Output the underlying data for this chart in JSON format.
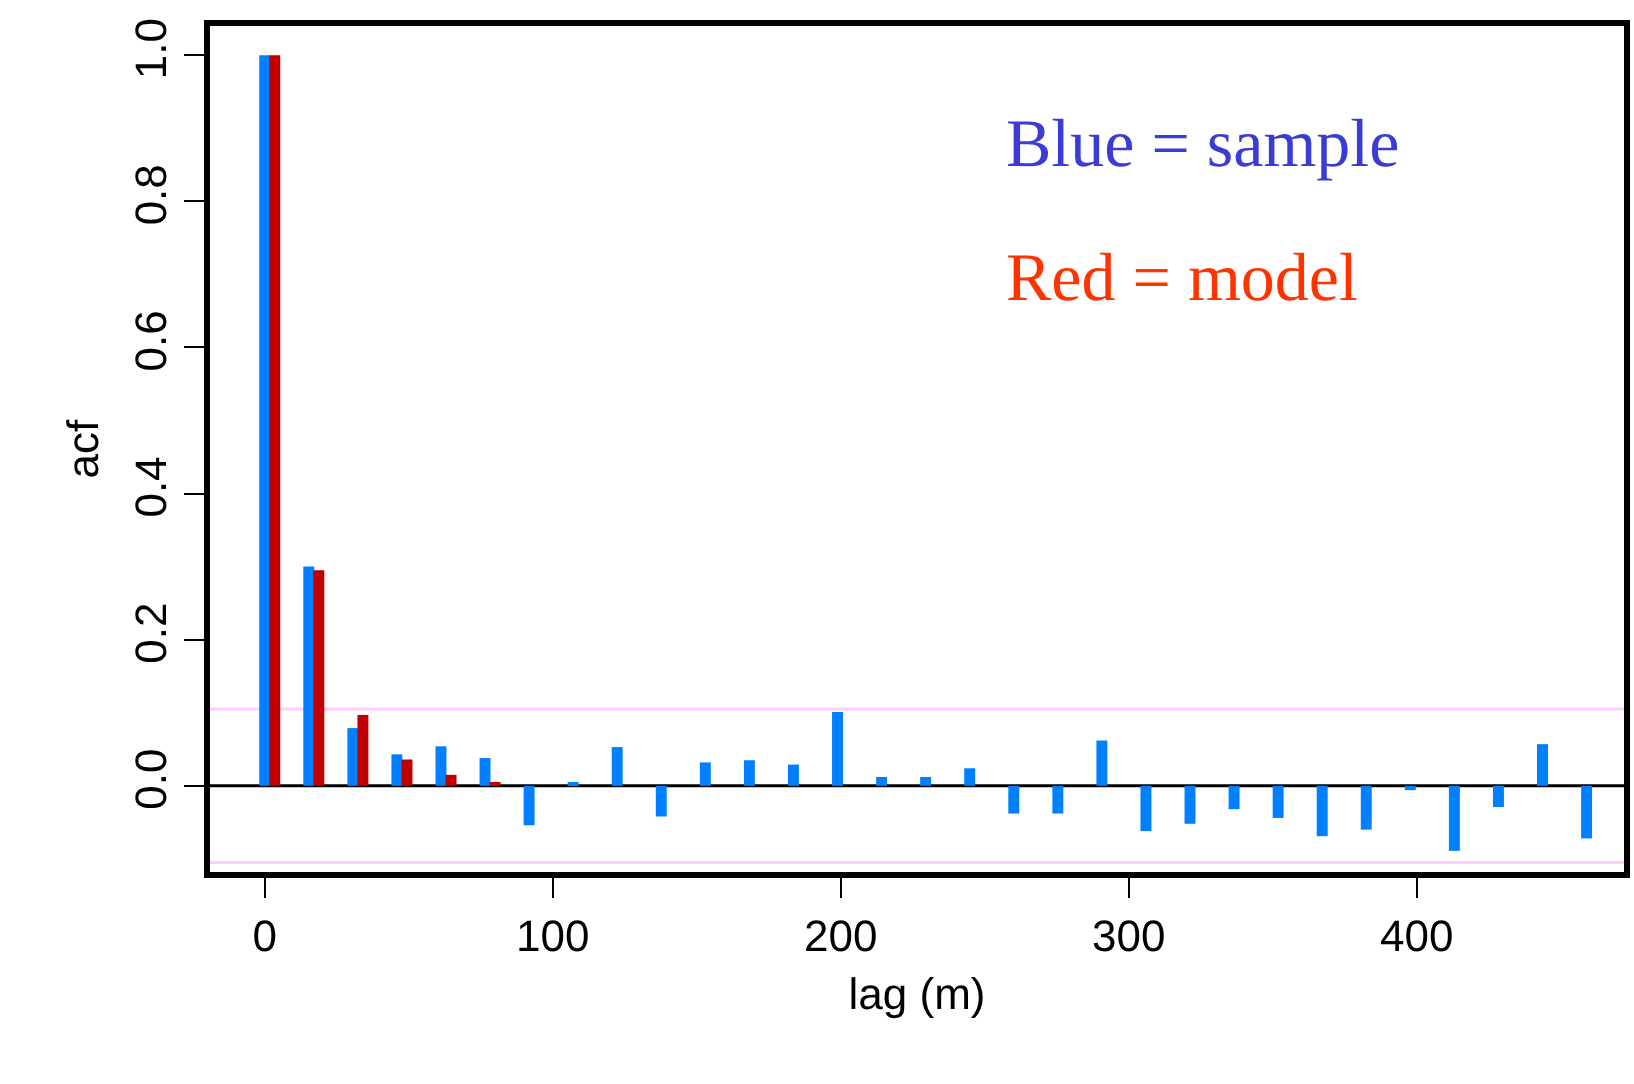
{
  "chart_data": {
    "type": "bar",
    "xlabel": "lag (m)",
    "ylabel": "acf",
    "series": [
      {
        "color": "#0080ff",
        "x": [
          0,
          15.3,
          30.6,
          45.9,
          61.2,
          76.5,
          91.8,
          107.1,
          122.4,
          137.7,
          153,
          168.3,
          183.6,
          198.9,
          214.2,
          229.5,
          244.8,
          260.1,
          275.4,
          290.7,
          306,
          321.3,
          336.6,
          351.9,
          367.2,
          382.5,
          397.8,
          413.1,
          428.4,
          443.7,
          459
        ],
        "values": [
          1.0,
          0.3,
          0.079,
          0.043,
          0.054,
          0.038,
          -0.054,
          0.005,
          0.053,
          -0.042,
          0.032,
          0.035,
          0.029,
          0.101,
          0.012,
          0.012,
          0.024,
          -0.038,
          -0.038,
          0.062,
          -0.062,
          -0.052,
          -0.032,
          -0.044,
          -0.069,
          -0.06,
          -0.006,
          -0.089,
          -0.029,
          0.057,
          -0.072
        ]
      },
      {
        "color": "#c00000",
        "x": [
          3.5,
          18.8,
          34.1,
          49.4,
          64.7,
          80,
          95.3,
          110.6,
          125.9,
          141.2,
          156.5,
          171.8,
          187.1,
          202.4,
          217.7,
          233,
          248.3,
          263.6,
          278.9,
          294.2,
          309.5,
          324.8,
          340.1,
          355.4,
          370.7,
          386,
          401.3,
          416.6,
          431.9,
          447.2,
          462.5
        ],
        "values": [
          1.0,
          0.295,
          0.097,
          0.036,
          0.015,
          0.005,
          0,
          0,
          0,
          0,
          0,
          0,
          0,
          0,
          0,
          0,
          0,
          0,
          0,
          0,
          0,
          0,
          0,
          0,
          0,
          0,
          0,
          0,
          0,
          0,
          0
        ]
      }
    ],
    "xlim": [
      -19,
      472
    ],
    "xticks": [
      0,
      100,
      200,
      300,
      400
    ],
    "ylim": [
      -0.118,
      1.04
    ],
    "yticks": [
      {
        "value": 0,
        "label": "0.0"
      },
      0.2,
      0.4,
      0.6,
      0.8,
      {
        "value": 1,
        "label": "1.0"
      }
    ],
    "ref_lines": [
      {
        "axis": "y",
        "value": 0,
        "color": "#000000"
      },
      {
        "axis": "y",
        "value": 0.105,
        "color": "#ffccff"
      },
      {
        "axis": "y",
        "value": -0.105,
        "color": "#ffccff"
      }
    ],
    "annotations": [
      "Blue = sample",
      "Red = model"
    ]
  }
}
